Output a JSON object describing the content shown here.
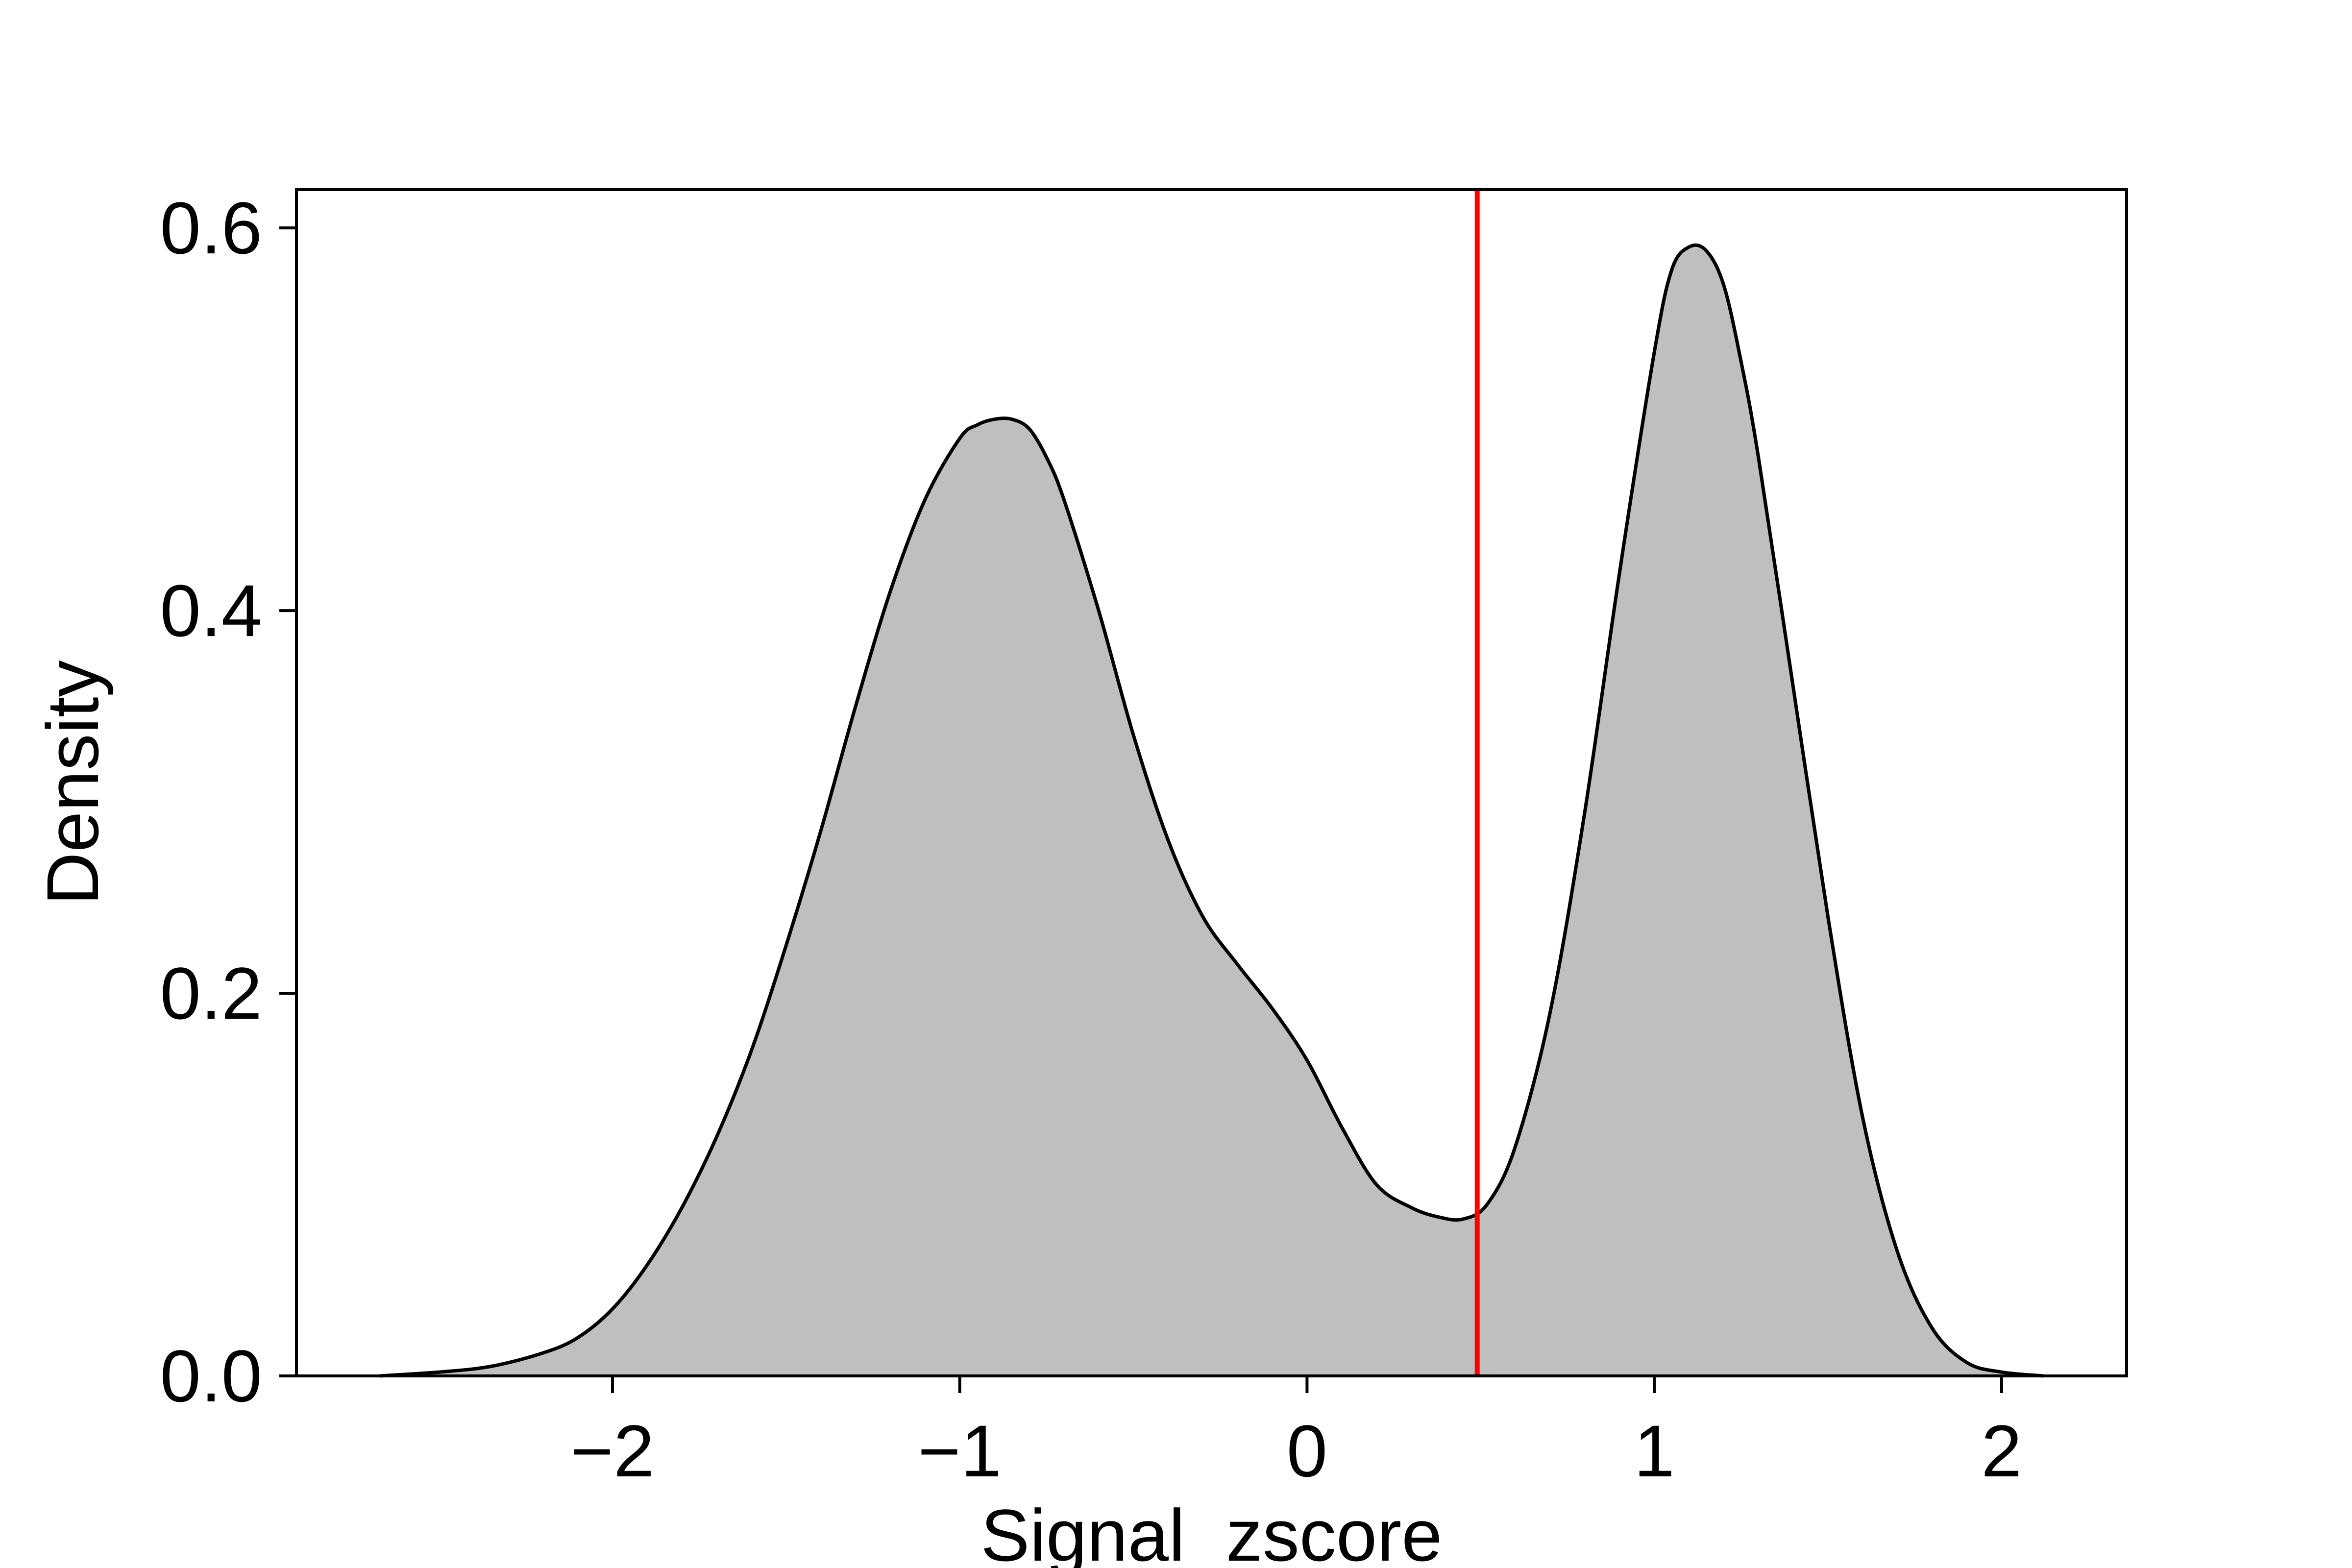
{
  "chart_data": {
    "type": "area",
    "title": "",
    "xlabel": "Signal_zscore",
    "ylabel": "Density",
    "xlim": [
      -2.91,
      2.36
    ],
    "ylim": [
      0.0,
      0.62
    ],
    "x_ticks": [
      -2,
      -1,
      0,
      1,
      2
    ],
    "x_tick_labels": [
      "−2",
      "−1",
      "0",
      "1",
      "2"
    ],
    "y_ticks": [
      0.0,
      0.2,
      0.4,
      0.6
    ],
    "y_tick_labels": [
      "0.0",
      "0.2",
      "0.4",
      "0.6"
    ],
    "grid": false,
    "legend": "none",
    "series": [
      {
        "x": [
          -2.67,
          -2.5,
          -2.35,
          -2.2,
          -2.1,
          -2.0,
          -1.9,
          -1.8,
          -1.7,
          -1.6,
          -1.5,
          -1.4,
          -1.3,
          -1.2,
          -1.1,
          -1.0,
          -0.95,
          -0.9,
          -0.85,
          -0.8,
          -0.75,
          -0.7,
          -0.6,
          -0.5,
          -0.4,
          -0.3,
          -0.2,
          -0.1,
          0.0,
          0.1,
          0.2,
          0.3,
          0.38,
          0.45,
          0.52,
          0.6,
          0.7,
          0.8,
          0.9,
          1.0,
          1.05,
          1.1,
          1.15,
          1.2,
          1.25,
          1.3,
          1.4,
          1.5,
          1.6,
          1.7,
          1.8,
          1.9,
          2.0,
          2.12
        ],
        "y": [
          0.0,
          0.002,
          0.005,
          0.012,
          0.02,
          0.035,
          0.058,
          0.088,
          0.125,
          0.17,
          0.225,
          0.285,
          0.35,
          0.41,
          0.458,
          0.49,
          0.497,
          0.5,
          0.5,
          0.495,
          0.48,
          0.458,
          0.4,
          0.335,
          0.28,
          0.24,
          0.215,
          0.192,
          0.165,
          0.13,
          0.1,
          0.088,
          0.083,
          0.082,
          0.09,
          0.12,
          0.19,
          0.295,
          0.42,
          0.535,
          0.578,
          0.59,
          0.588,
          0.57,
          0.53,
          0.48,
          0.36,
          0.24,
          0.135,
          0.065,
          0.025,
          0.007,
          0.002,
          0.0
        ]
      }
    ],
    "fill_color": "#bfbfbf",
    "line_color": "#000000",
    "threshold_line": {
      "x": 0.49,
      "color": "#ff0000"
    }
  }
}
